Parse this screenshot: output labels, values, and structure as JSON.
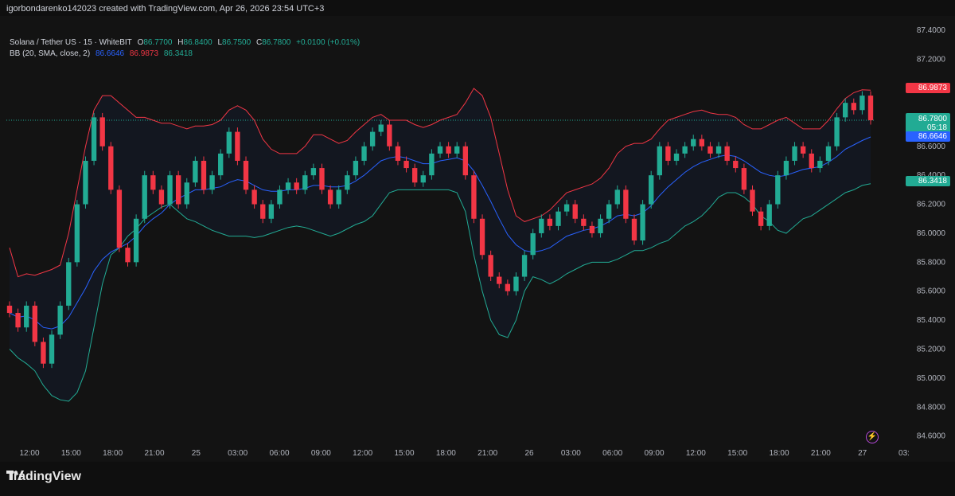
{
  "header": {
    "text": "igorbondarenko142023 created with TradingView.com, Apr 26, 2026 23:54 UTC+3"
  },
  "legend": {
    "symbol": "Solana / Tether US · 15 · WhiteBIT",
    "o_label": "O",
    "o_value": "86.7700",
    "h_label": "H",
    "h_value": "86.8400",
    "l_label": "L",
    "l_value": "86.7500",
    "c_label": "C",
    "c_value": "86.7800",
    "change": "+0.0100 (+0.01%)",
    "bb_label": "BB (20, SMA, close, 2)",
    "bb_basis": "86.6646",
    "bb_upper": "86.9873",
    "bb_lower": "86.3418"
  },
  "price_tags": {
    "upper": "86.9873",
    "last": "86.7800",
    "countdown": "05:18",
    "basis": "86.6646",
    "lower": "86.3418"
  },
  "colors": {
    "up": "#22ab94",
    "down": "#f23645",
    "basis": "#2962ff",
    "upper_band": "#f23645",
    "lower_band": "#22ab94",
    "background": "#131313"
  },
  "footer": {
    "brand": "TradingView"
  },
  "icons": {
    "alert": "lightning-icon",
    "logo": "tradingview-logo-icon"
  },
  "chart_data": {
    "type": "candlestick",
    "instrument": "Solana / Tether US",
    "interval": "15",
    "y_ticks": [
      "87.4000",
      "87.2000",
      "87.0000",
      "86.8000",
      "86.6000",
      "86.4000",
      "86.2000",
      "86.0000",
      "85.8000",
      "85.6000",
      "85.4000",
      "85.2000",
      "85.0000",
      "84.8000",
      "84.6000"
    ],
    "ylim": [
      84.56,
      87.5
    ],
    "x_ticks": [
      "12:00",
      "15:00",
      "18:00",
      "21:00",
      "25",
      "03:00",
      "06:00",
      "09:00",
      "12:00",
      "15:00",
      "18:00",
      "21:00",
      "26",
      "03:00",
      "06:00",
      "09:00",
      "12:00",
      "15:00",
      "18:00",
      "21:00",
      "27",
      "03:"
    ],
    "closes": [
      85.45,
      85.35,
      85.5,
      85.25,
      85.1,
      85.3,
      85.5,
      85.8,
      86.2,
      86.5,
      86.8,
      86.6,
      86.3,
      85.9,
      85.8,
      86.1,
      86.4,
      86.3,
      86.2,
      86.4,
      86.2,
      86.35,
      86.5,
      86.3,
      86.4,
      86.55,
      86.7,
      86.5,
      86.3,
      86.2,
      86.1,
      86.2,
      86.3,
      86.35,
      86.3,
      86.4,
      86.45,
      86.3,
      86.2,
      86.3,
      86.4,
      86.5,
      86.6,
      86.7,
      86.75,
      86.6,
      86.5,
      86.45,
      86.35,
      86.4,
      86.55,
      86.6,
      86.55,
      86.6,
      86.4,
      86.1,
      85.85,
      85.7,
      85.65,
      85.6,
      85.7,
      85.85,
      86.0,
      86.1,
      86.05,
      86.15,
      86.2,
      86.1,
      86.05,
      86.0,
      86.1,
      86.2,
      86.3,
      86.1,
      85.95,
      86.2,
      86.4,
      86.6,
      86.5,
      86.55,
      86.6,
      86.65,
      86.6,
      86.55,
      86.6,
      86.5,
      86.45,
      86.3,
      86.15,
      86.05,
      86.2,
      86.4,
      86.5,
      86.6,
      86.55,
      86.45,
      86.5,
      86.6,
      86.8,
      86.9,
      86.85,
      86.95,
      86.78
    ],
    "basis": [
      85.45,
      85.42,
      85.43,
      85.4,
      85.35,
      85.34,
      85.36,
      85.42,
      85.52,
      85.62,
      85.74,
      85.82,
      85.87,
      85.9,
      85.93,
      85.98,
      86.05,
      86.1,
      86.14,
      86.2,
      86.24,
      86.27,
      86.3,
      86.3,
      86.31,
      86.32,
      86.35,
      86.37,
      86.36,
      86.33,
      86.3,
      86.29,
      86.29,
      86.3,
      86.3,
      86.31,
      86.33,
      86.33,
      86.32,
      86.32,
      86.33,
      86.36,
      86.4,
      86.45,
      86.5,
      86.52,
      86.53,
      86.52,
      86.5,
      86.48,
      86.48,
      86.5,
      86.51,
      86.52,
      86.5,
      86.43,
      86.33,
      86.22,
      86.1,
      85.99,
      85.92,
      85.88,
      85.87,
      85.88,
      85.9,
      85.94,
      85.98,
      86.0,
      86.02,
      86.03,
      86.05,
      86.08,
      86.12,
      86.13,
      86.12,
      86.14,
      86.19,
      86.26,
      86.32,
      86.37,
      86.42,
      86.46,
      86.49,
      86.51,
      86.53,
      86.54,
      86.53,
      86.5,
      86.46,
      86.42,
      86.4,
      86.39,
      86.4,
      86.42,
      86.44,
      86.45,
      86.46,
      86.49,
      86.53,
      86.58,
      86.61,
      86.64,
      86.6646
    ],
    "upper": [
      85.9,
      85.7,
      85.72,
      85.71,
      85.73,
      85.75,
      85.78,
      86.0,
      86.3,
      86.6,
      86.85,
      86.95,
      86.95,
      86.9,
      86.85,
      86.8,
      86.8,
      86.78,
      86.76,
      86.76,
      86.74,
      86.72,
      86.74,
      86.74,
      86.75,
      86.78,
      86.85,
      86.88,
      86.85,
      86.78,
      86.65,
      86.58,
      86.55,
      86.55,
      86.55,
      86.6,
      86.68,
      86.68,
      86.65,
      86.62,
      86.64,
      86.7,
      86.75,
      86.8,
      86.82,
      86.78,
      86.78,
      86.78,
      86.75,
      86.73,
      86.75,
      86.78,
      86.8,
      86.82,
      86.9,
      87.0,
      86.95,
      86.8,
      86.55,
      86.3,
      86.12,
      86.08,
      86.1,
      86.12,
      86.16,
      86.22,
      86.28,
      86.3,
      86.32,
      86.34,
      86.38,
      86.45,
      86.55,
      86.6,
      86.62,
      86.62,
      86.65,
      86.72,
      86.78,
      86.8,
      86.82,
      86.84,
      86.85,
      86.83,
      86.82,
      86.82,
      86.8,
      86.75,
      86.72,
      86.72,
      86.75,
      86.78,
      86.8,
      86.76,
      86.72,
      86.72,
      86.72,
      86.78,
      86.86,
      86.93,
      86.97,
      86.99,
      86.9873
    ],
    "lower": [
      85.2,
      85.14,
      85.1,
      85.05,
      84.95,
      84.88,
      84.85,
      84.84,
      84.9,
      85.05,
      85.35,
      85.65,
      85.85,
      85.9,
      85.98,
      86.03,
      86.1,
      86.14,
      86.18,
      86.2,
      86.15,
      86.1,
      86.08,
      86.05,
      86.02,
      86.0,
      85.98,
      85.98,
      85.98,
      85.97,
      85.98,
      86.0,
      86.02,
      86.04,
      86.05,
      86.04,
      86.02,
      86.0,
      85.98,
      86.0,
      86.03,
      86.06,
      86.08,
      86.12,
      86.2,
      86.28,
      86.3,
      86.3,
      86.3,
      86.3,
      86.3,
      86.3,
      86.3,
      86.28,
      86.15,
      85.85,
      85.6,
      85.4,
      85.3,
      85.28,
      85.4,
      85.6,
      85.7,
      85.68,
      85.65,
      85.68,
      85.72,
      85.75,
      85.78,
      85.8,
      85.8,
      85.8,
      85.82,
      85.85,
      85.88,
      85.88,
      85.9,
      85.93,
      85.95,
      86.0,
      86.05,
      86.08,
      86.12,
      86.18,
      86.25,
      86.28,
      86.28,
      86.25,
      86.2,
      86.12,
      86.08,
      86.02,
      86.0,
      86.05,
      86.1,
      86.12,
      86.16,
      86.2,
      86.24,
      86.28,
      86.3,
      86.33,
      86.3418
    ]
  }
}
